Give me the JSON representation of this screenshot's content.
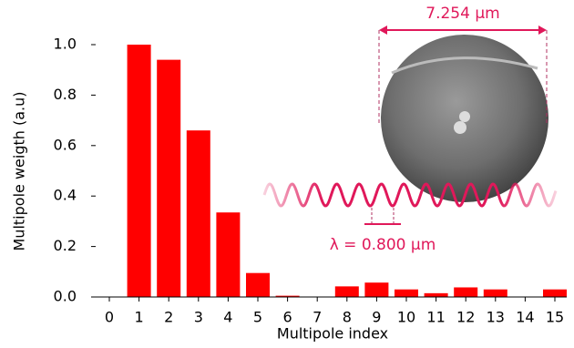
{
  "chart_data": {
    "type": "bar",
    "xlabel": "Multipole index",
    "ylabel": "Multipole weigth (a.u)",
    "categories": [
      "0",
      "1",
      "2",
      "3",
      "4",
      "5",
      "6",
      "7",
      "8",
      "9",
      "10",
      "11",
      "12",
      "13",
      "14",
      "15"
    ],
    "values": [
      0,
      1.0,
      0.94,
      0.66,
      0.335,
      0.095,
      0.005,
      0,
      0.042,
      0.057,
      0.03,
      0.015,
      0.038,
      0.03,
      0,
      0.03
    ],
    "color": "#ff0000",
    "ylim": [
      0,
      1.05
    ],
    "yticks": [
      {
        "value": 0,
        "label": "0.0"
      },
      0.2,
      0.4,
      0.6,
      0.8,
      {
        "value": 1,
        "label": "1.0"
      }
    ],
    "annotations": [
      "7.254 µm",
      "λ = 0.800 µm"
    ]
  }
}
